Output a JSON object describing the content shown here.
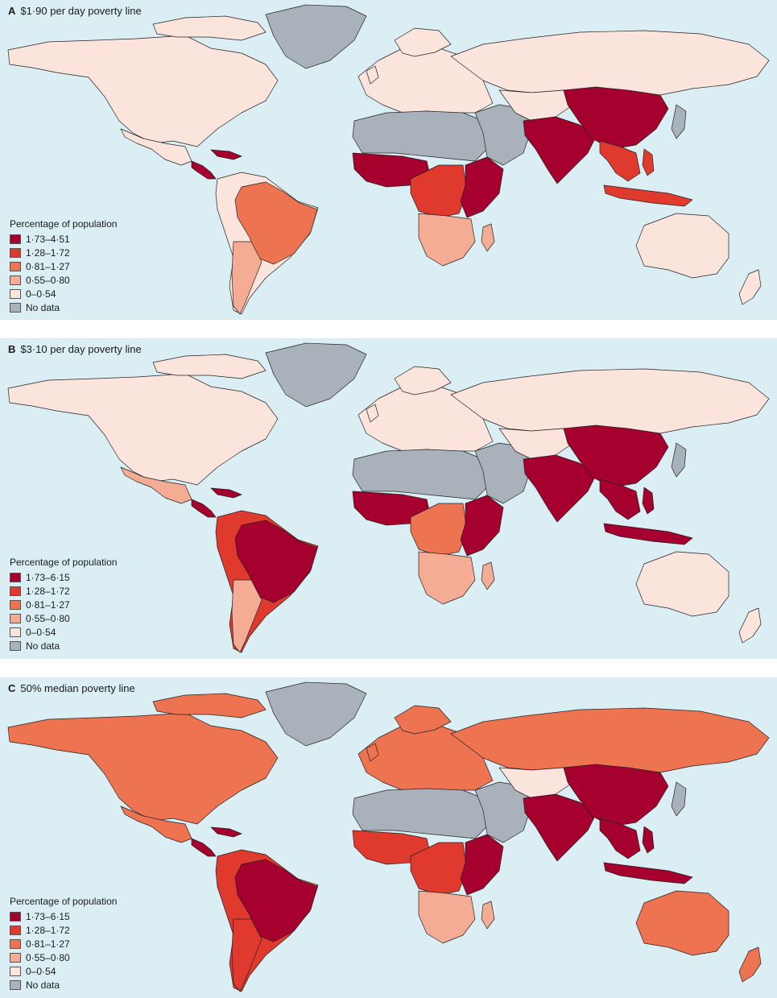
{
  "colors": {
    "ocean": "#daeef4",
    "c1": "#a5002e",
    "c2": "#e03a2f",
    "c3": "#ee7351",
    "c4": "#f4ad94",
    "c5": "#fbe4dc",
    "nodata": "#a9b1ba"
  },
  "panels": [
    {
      "letter": "A",
      "title": "$1·90 per day poverty line",
      "legend": {
        "title": "Percentage of population",
        "items": [
          {
            "label": "1·73–4·51",
            "color": "#a5002e"
          },
          {
            "label": "1·28–1·72",
            "color": "#e03a2f"
          },
          {
            "label": "0·81–1·27",
            "color": "#ee7351"
          },
          {
            "label": "0·55–0·80",
            "color": "#f4ad94"
          },
          {
            "label": "0–0·54",
            "color": "#fbe4dc"
          },
          {
            "label": "No data",
            "color": "#a9b1ba"
          }
        ]
      },
      "regions": {
        "north_america": "c5",
        "greenland": "nodata",
        "mexico": "c5",
        "central_america": "c1",
        "south_america": "c5",
        "brazil": "c3",
        "argentina": "c4",
        "europe": "c5",
        "north_africa": "nodata",
        "west_africa": "c1",
        "central_africa": "c2",
        "east_africa": "c1",
        "southern_africa": "c4",
        "middle_east": "nodata",
        "russia": "c5",
        "central_asia": "c5",
        "south_asia": "c1",
        "china": "c1",
        "southeast_asia": "c2",
        "australia": "c5",
        "japan": "nodata"
      }
    },
    {
      "letter": "B",
      "title": "$3·10 per day poverty line",
      "legend": {
        "title": "Percentage of population",
        "items": [
          {
            "label": "1·73–6·15",
            "color": "#a5002e"
          },
          {
            "label": "1·28–1·72",
            "color": "#e03a2f"
          },
          {
            "label": "0·81–1·27",
            "color": "#ee7351"
          },
          {
            "label": "0·55–0·80",
            "color": "#f4ad94"
          },
          {
            "label": "0–0·54",
            "color": "#fbe4dc"
          },
          {
            "label": "No data",
            "color": "#a9b1ba"
          }
        ]
      },
      "regions": {
        "north_america": "c5",
        "greenland": "nodata",
        "mexico": "c4",
        "central_america": "c1",
        "south_america": "c2",
        "brazil": "c1",
        "argentina": "c4",
        "europe": "c5",
        "north_africa": "nodata",
        "west_africa": "c1",
        "central_africa": "c3",
        "east_africa": "c1",
        "southern_africa": "c4",
        "middle_east": "nodata",
        "russia": "c5",
        "central_asia": "c5",
        "south_asia": "c1",
        "china": "c1",
        "southeast_asia": "c1",
        "australia": "c5",
        "japan": "nodata"
      }
    },
    {
      "letter": "C",
      "title": "50% median poverty line",
      "legend": {
        "title": "Percentage of population",
        "items": [
          {
            "label": "1·73–6·15",
            "color": "#a5002e"
          },
          {
            "label": "1·28–1·72",
            "color": "#e03a2f"
          },
          {
            "label": "0·81–1·27",
            "color": "#ee7351"
          },
          {
            "label": "0·55–0·80",
            "color": "#f4ad94"
          },
          {
            "label": "0–0·54",
            "color": "#fbe4dc"
          },
          {
            "label": "No data",
            "color": "#a9b1ba"
          }
        ]
      },
      "regions": {
        "north_america": "c3",
        "greenland": "nodata",
        "mexico": "c3",
        "central_america": "c1",
        "south_america": "c2",
        "brazil": "c1",
        "argentina": "c2",
        "europe": "c3",
        "north_africa": "nodata",
        "west_africa": "c2",
        "central_africa": "c2",
        "east_africa": "c1",
        "southern_africa": "c4",
        "middle_east": "nodata",
        "russia": "c3",
        "central_asia": "c5",
        "south_asia": "c1",
        "china": "c1",
        "southeast_asia": "c1",
        "australia": "c3",
        "japan": "nodata"
      }
    }
  ]
}
